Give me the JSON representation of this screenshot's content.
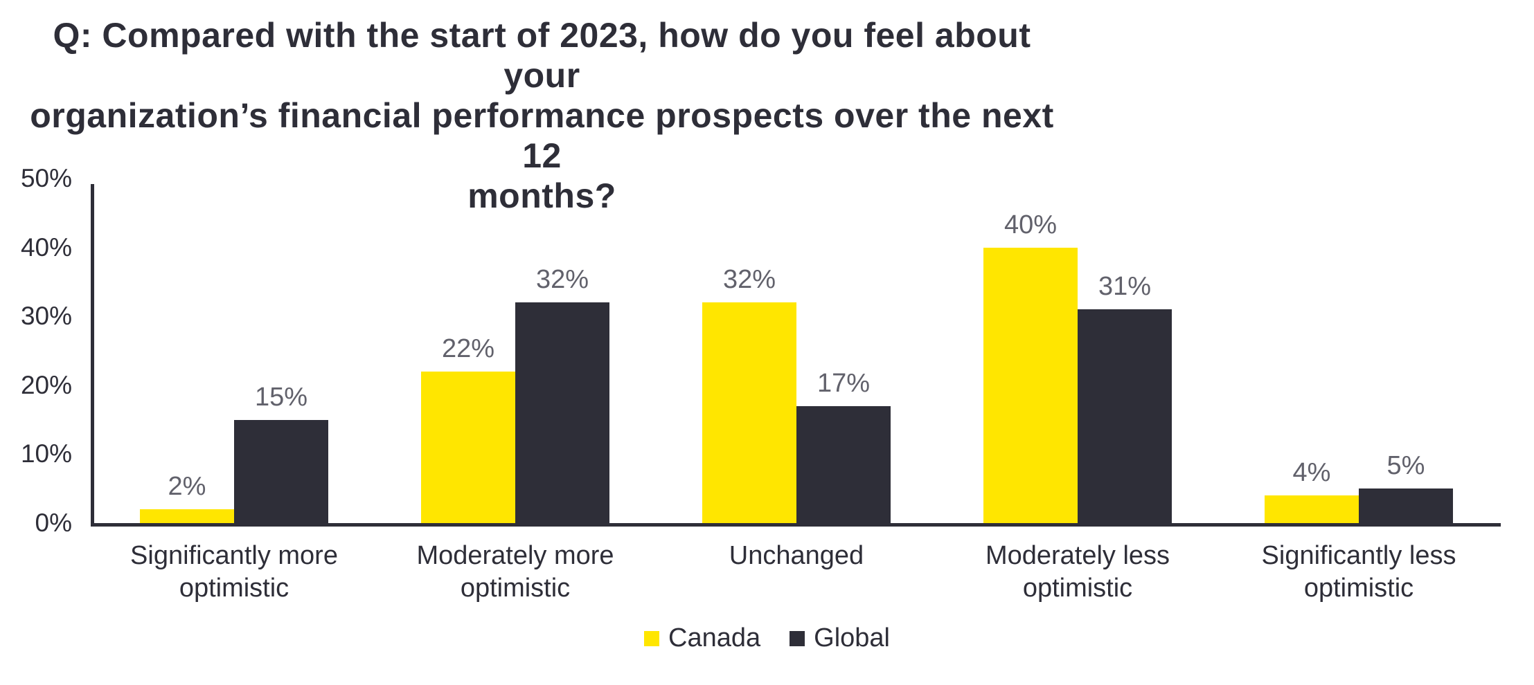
{
  "title_lines": [
    "Q: Compared with the start of 2023, how do you feel about your",
    "organization’s financial performance prospects over the next 12",
    "months?"
  ],
  "chart_data": {
    "type": "bar",
    "title": "Q: Compared with the start of 2023, how do you feel about your organization’s financial performance prospects over the next 12 months?",
    "categories": [
      "Significantly more optimistic",
      "Moderately more optimistic",
      "Unchanged",
      "Moderately less optimistic",
      "Significantly less optimistic"
    ],
    "series": [
      {
        "name": "Canada",
        "color": "#FFE600",
        "values": [
          2,
          22,
          32,
          40,
          4
        ]
      },
      {
        "name": "Global",
        "color": "#2E2E38",
        "values": [
          15,
          32,
          17,
          31,
          5
        ]
      }
    ],
    "value_label_suffix": "%",
    "ylim": [
      0,
      50
    ],
    "yticks": [
      0,
      10,
      20,
      30,
      40,
      50
    ],
    "ytick_suffix": "%",
    "grid": false,
    "legend_position": "bottom"
  },
  "colors": {
    "background": "#FFFFFF",
    "axis": "#2E2E38",
    "title_text": "#2E2E38",
    "category_text": "#2E2E38",
    "value_label_text": "#61616B",
    "canada_yellow": "#FFE600",
    "global_dark": "#2E2E38"
  }
}
